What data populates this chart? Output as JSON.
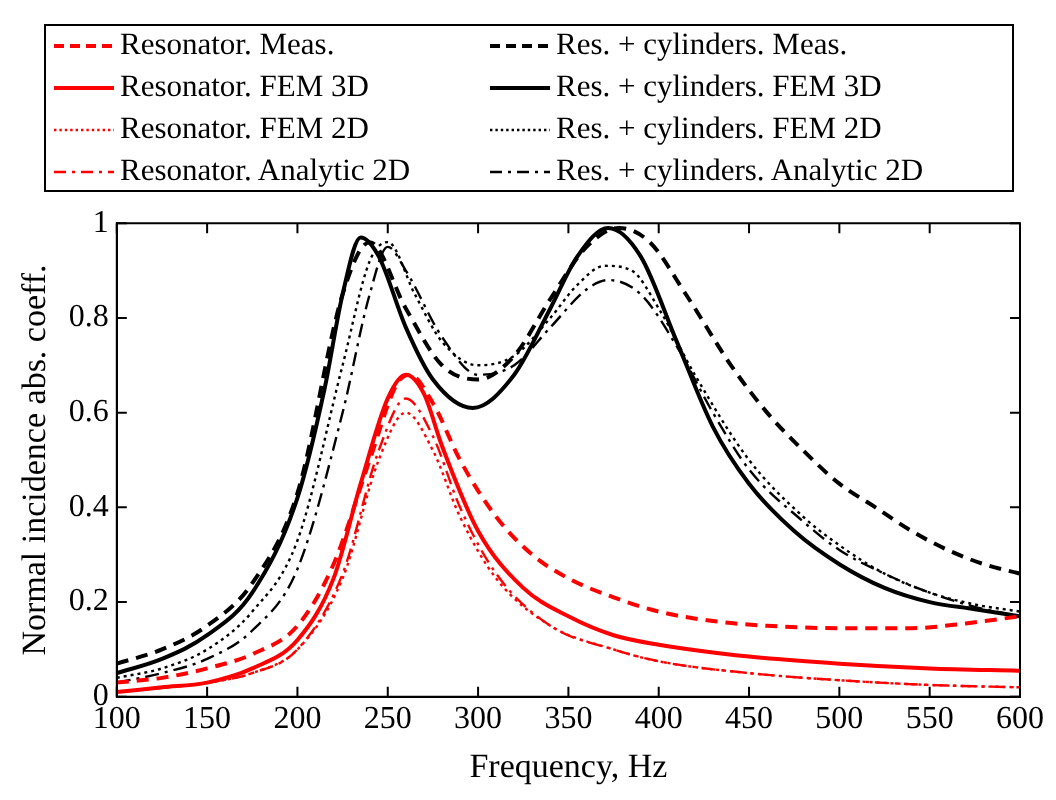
{
  "chart_data": {
    "type": "line",
    "xlabel": "Frequency, Hz",
    "ylabel": "Normal incidence abs. coeff.",
    "xlim": [
      100,
      600
    ],
    "ylim": [
      0,
      1
    ],
    "xticks": [
      100,
      150,
      200,
      250,
      300,
      350,
      400,
      450,
      500,
      550,
      600
    ],
    "yticks": [
      0,
      0.2,
      0.4,
      0.6,
      0.8,
      1
    ],
    "grid": false,
    "legend": "top",
    "marker": "none",
    "series": [
      {
        "name": "Resonator. Meas.",
        "color": "#ff0000",
        "line_style": "dashed",
        "x": [
          100,
          125,
          150,
          175,
          200,
          220,
          240,
          255,
          262,
          275,
          290,
          310,
          330,
          350,
          375,
          400,
          430,
          460,
          500,
          540,
          570,
          600
        ],
        "values": [
          0.03,
          0.04,
          0.06,
          0.09,
          0.15,
          0.28,
          0.5,
          0.66,
          0.68,
          0.62,
          0.5,
          0.38,
          0.3,
          0.25,
          0.21,
          0.18,
          0.16,
          0.15,
          0.145,
          0.145,
          0.155,
          0.17
        ]
      },
      {
        "name": "Resonator. FEM 3D",
        "color": "#ff0000",
        "line_style": "solid",
        "x": [
          100,
          125,
          150,
          175,
          200,
          220,
          235,
          250,
          260,
          270,
          280,
          300,
          325,
          350,
          375,
          400,
          450,
          500,
          550,
          600
        ],
        "values": [
          0.01,
          0.02,
          0.03,
          0.06,
          0.12,
          0.25,
          0.45,
          0.63,
          0.68,
          0.64,
          0.53,
          0.35,
          0.23,
          0.17,
          0.13,
          0.11,
          0.085,
          0.07,
          0.06,
          0.055
        ]
      },
      {
        "name": "Resonator. FEM 2D",
        "color": "#ff0000",
        "line_style": "dotted",
        "x": [
          100,
          150,
          175,
          200,
          225,
          245,
          260,
          275,
          290,
          310,
          340,
          375,
          400,
          450,
          500,
          550,
          600
        ],
        "values": [
          0.01,
          0.03,
          0.05,
          0.1,
          0.25,
          0.5,
          0.6,
          0.52,
          0.38,
          0.25,
          0.15,
          0.1,
          0.075,
          0.05,
          0.035,
          0.025,
          0.02
        ]
      },
      {
        "name": "Resonator. Analytic 2D",
        "color": "#ff0000",
        "line_style": "dashdot",
        "x": [
          100,
          150,
          175,
          200,
          225,
          245,
          260,
          275,
          290,
          310,
          340,
          375,
          400,
          450,
          500,
          550,
          600
        ],
        "values": [
          0.01,
          0.03,
          0.05,
          0.1,
          0.26,
          0.52,
          0.63,
          0.55,
          0.4,
          0.26,
          0.15,
          0.1,
          0.075,
          0.05,
          0.035,
          0.025,
          0.02
        ]
      },
      {
        "name": "Res. + cylinders. Meas.",
        "color": "#000000",
        "line_style": "dashed",
        "x": [
          100,
          125,
          150,
          175,
          200,
          225,
          240,
          260,
          280,
          300,
          320,
          340,
          360,
          378,
          395,
          415,
          440,
          460,
          480,
          500,
          520,
          540,
          560,
          580,
          600
        ],
        "values": [
          0.07,
          0.1,
          0.15,
          0.24,
          0.43,
          0.85,
          0.96,
          0.82,
          0.7,
          0.67,
          0.72,
          0.84,
          0.95,
          0.99,
          0.96,
          0.85,
          0.7,
          0.6,
          0.52,
          0.45,
          0.4,
          0.35,
          0.31,
          0.28,
          0.26
        ]
      },
      {
        "name": "Res. + cylinders. FEM 3D",
        "color": "#000000",
        "line_style": "solid",
        "x": [
          100,
          125,
          150,
          175,
          200,
          215,
          225,
          235,
          245,
          260,
          275,
          297,
          320,
          340,
          355,
          372,
          390,
          410,
          430,
          450,
          475,
          500,
          525,
          550,
          575,
          600
        ],
        "values": [
          0.05,
          0.08,
          0.13,
          0.22,
          0.42,
          0.65,
          0.85,
          0.97,
          0.93,
          0.78,
          0.67,
          0.61,
          0.68,
          0.82,
          0.93,
          0.99,
          0.93,
          0.75,
          0.57,
          0.45,
          0.35,
          0.28,
          0.23,
          0.2,
          0.185,
          0.17
        ]
      },
      {
        "name": "Res. + cylinders. FEM 2D",
        "color": "#000000",
        "line_style": "dotted",
        "x": [
          100,
          125,
          150,
          175,
          200,
          225,
          240,
          250,
          265,
          280,
          300,
          320,
          340,
          355,
          370,
          385,
          400,
          420,
          450,
          480,
          500,
          525,
          550,
          575,
          600
        ],
        "values": [
          0.04,
          0.06,
          0.1,
          0.18,
          0.33,
          0.7,
          0.92,
          0.96,
          0.85,
          0.75,
          0.7,
          0.72,
          0.8,
          0.87,
          0.91,
          0.9,
          0.82,
          0.68,
          0.5,
          0.38,
          0.32,
          0.26,
          0.22,
          0.195,
          0.18
        ]
      },
      {
        "name": "Res. + cylinders. Analytic 2D",
        "color": "#000000",
        "line_style": "dashdot",
        "x": [
          100,
          125,
          150,
          175,
          200,
          225,
          240,
          250,
          260,
          280,
          300,
          320,
          340,
          360,
          372,
          390,
          410,
          430,
          450,
          480,
          500,
          525,
          550,
          575,
          600
        ],
        "values": [
          0.03,
          0.05,
          0.08,
          0.14,
          0.27,
          0.6,
          0.85,
          0.95,
          0.9,
          0.76,
          0.68,
          0.7,
          0.78,
          0.86,
          0.88,
          0.85,
          0.74,
          0.6,
          0.48,
          0.37,
          0.31,
          0.26,
          0.22,
          0.19,
          0.17
        ]
      }
    ]
  }
}
